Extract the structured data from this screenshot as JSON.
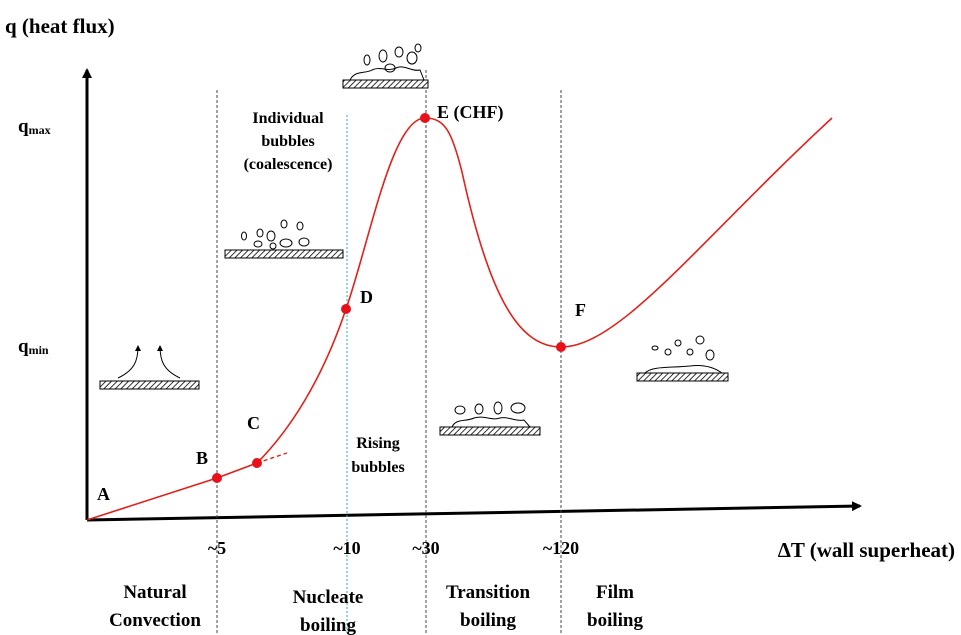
{
  "axes": {
    "y_label": "q (heat flux)",
    "x_label": "ΔT (wall superheat)"
  },
  "y_levels": [
    {
      "main": "q",
      "sub": "max"
    },
    {
      "main": "q",
      "sub": "min"
    }
  ],
  "x_ticks": [
    "~5",
    "~10",
    "~30",
    "~120"
  ],
  "points": [
    "A",
    "B",
    "C",
    "D",
    "E (CHF)",
    "F"
  ],
  "annotations": [
    [
      "Individual",
      "bubbles",
      "(coalescence)"
    ],
    [
      "Rising",
      "bubbles"
    ]
  ],
  "regions": [
    [
      "Natural",
      "Convection"
    ],
    [
      "Nucleate",
      "boiling"
    ],
    [
      "Transition",
      "boiling"
    ],
    [
      "Film",
      "boiling"
    ]
  ]
}
